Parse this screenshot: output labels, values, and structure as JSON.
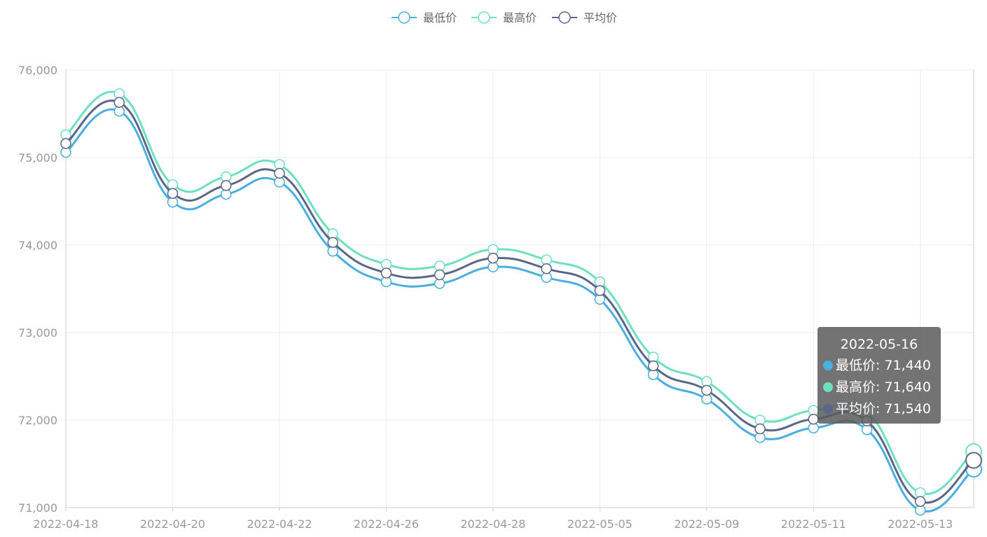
{
  "chart_data": {
    "type": "line",
    "smooth": true,
    "x": [
      "2022-04-18",
      "2022-04-19",
      "2022-04-20",
      "2022-04-21",
      "2022-04-22",
      "2022-04-25",
      "2022-04-26",
      "2022-04-27",
      "2022-04-28",
      "2022-04-29",
      "2022-05-05",
      "2022-05-06",
      "2022-05-09",
      "2022-05-10",
      "2022-05-11",
      "2022-05-12",
      "2022-05-13",
      "2022-05-16"
    ],
    "x_tick_labels": [
      "2022-04-18",
      "2022-04-20",
      "2022-04-22",
      "2022-04-26",
      "2022-04-28",
      "2022-05-05",
      "2022-05-09",
      "2022-05-11",
      "2022-05-13"
    ],
    "y_tick_labels": [
      "71,000",
      "72,000",
      "73,000",
      "74,000",
      "75,000",
      "76,000"
    ],
    "ylim": [
      71000,
      76000
    ],
    "yticks": [
      71000,
      72000,
      73000,
      74000,
      75000,
      76000
    ],
    "grid": true,
    "legend_position": "top-center",
    "series": [
      {
        "name": "最低价",
        "color": "#4aaee0",
        "values": [
          75060,
          75530,
          74490,
          74580,
          74720,
          73930,
          73580,
          73560,
          73750,
          73630,
          73380,
          72520,
          72240,
          71800,
          71910,
          71890,
          70970,
          71440
        ]
      },
      {
        "name": "最高价",
        "color": "#6ee0c0",
        "values": [
          75260,
          75730,
          74690,
          74780,
          74920,
          74130,
          73780,
          73760,
          73950,
          73830,
          73580,
          72720,
          72440,
          72000,
          72110,
          72090,
          71170,
          71640
        ]
      },
      {
        "name": "平均价",
        "color": "#5b6788",
        "values": [
          75160,
          75630,
          74590,
          74680,
          74820,
          74030,
          73680,
          73660,
          73850,
          73730,
          73480,
          72620,
          72340,
          71900,
          72010,
          71990,
          71070,
          71540
        ]
      }
    ],
    "tooltip": {
      "date": "2022-05-16",
      "rows": [
        {
          "label": "最低价: 71,440",
          "color": "#4aaee0"
        },
        {
          "label": "最高价: 71,640",
          "color": "#6ee0c0"
        },
        {
          "label": "平均价: 71,540",
          "color": "#5b6788"
        }
      ]
    }
  }
}
